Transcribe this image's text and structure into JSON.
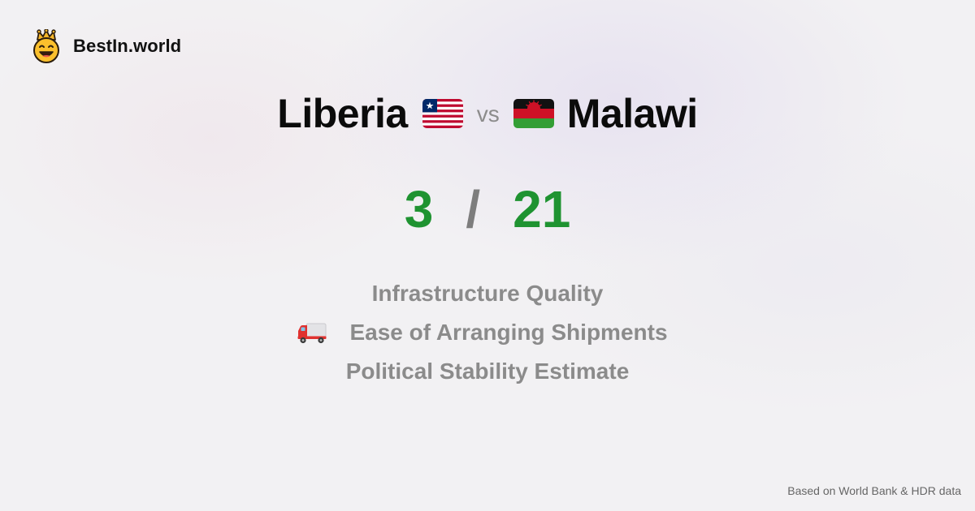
{
  "brand": {
    "name": "BestIn.world",
    "logo_icon": "crowned-smiley-icon"
  },
  "comparison": {
    "left_country": "Liberia",
    "left_flag_icon": "liberia-flag-icon",
    "vs_label": "vs",
    "right_country": "Malawi",
    "right_flag_icon": "malawi-flag-icon"
  },
  "score": {
    "left": "3",
    "separator": "/",
    "right": "21"
  },
  "metrics": [
    {
      "label": "Infrastructure Quality"
    },
    {
      "label": "Ease of Arranging Shipments",
      "icon": "delivery-truck-icon"
    },
    {
      "label": "Political Stability Estimate"
    }
  ],
  "footer": {
    "note": "Based on World Bank & HDR data"
  },
  "colors": {
    "score_green": "#1f9331",
    "muted_text": "#8b8b8b",
    "brand_text": "#111111"
  }
}
